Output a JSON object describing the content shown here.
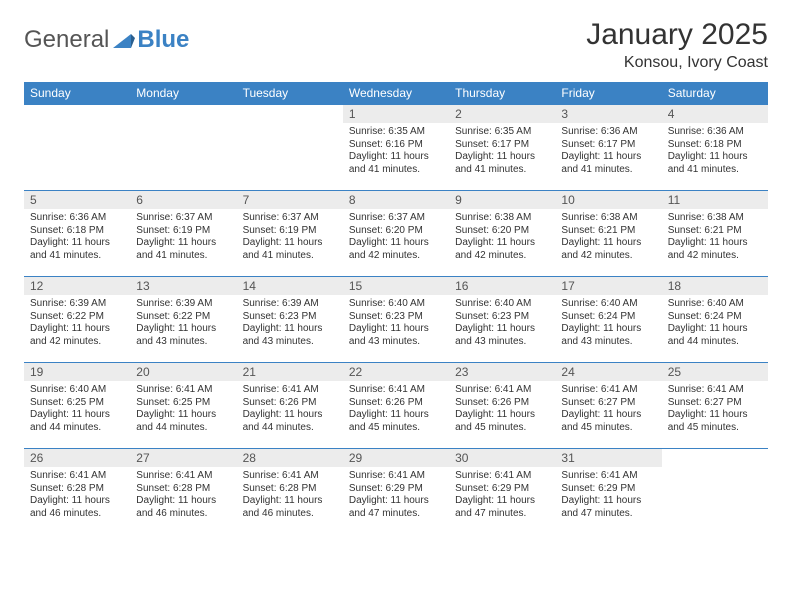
{
  "brand": {
    "part1": "General",
    "part2": "Blue"
  },
  "title": "January 2025",
  "location": "Konsou, Ivory Coast",
  "colors": {
    "header_bg": "#3b82c4",
    "header_text": "#ffffff",
    "daynum_bg": "#ececec",
    "border": "#3b82c4",
    "text": "#333333",
    "background": "#ffffff"
  },
  "typography": {
    "title_fontsize": 30,
    "location_fontsize": 16,
    "header_fontsize": 12,
    "daynum_fontsize": 12,
    "body_fontsize": 10
  },
  "day_headers": [
    "Sunday",
    "Monday",
    "Tuesday",
    "Wednesday",
    "Thursday",
    "Friday",
    "Saturday"
  ],
  "weeks": [
    [
      null,
      null,
      null,
      {
        "n": "1",
        "sunrise": "6:35 AM",
        "sunset": "6:16 PM",
        "daylight": "11 hours and 41 minutes."
      },
      {
        "n": "2",
        "sunrise": "6:35 AM",
        "sunset": "6:17 PM",
        "daylight": "11 hours and 41 minutes."
      },
      {
        "n": "3",
        "sunrise": "6:36 AM",
        "sunset": "6:17 PM",
        "daylight": "11 hours and 41 minutes."
      },
      {
        "n": "4",
        "sunrise": "6:36 AM",
        "sunset": "6:18 PM",
        "daylight": "11 hours and 41 minutes."
      }
    ],
    [
      {
        "n": "5",
        "sunrise": "6:36 AM",
        "sunset": "6:18 PM",
        "daylight": "11 hours and 41 minutes."
      },
      {
        "n": "6",
        "sunrise": "6:37 AM",
        "sunset": "6:19 PM",
        "daylight": "11 hours and 41 minutes."
      },
      {
        "n": "7",
        "sunrise": "6:37 AM",
        "sunset": "6:19 PM",
        "daylight": "11 hours and 41 minutes."
      },
      {
        "n": "8",
        "sunrise": "6:37 AM",
        "sunset": "6:20 PM",
        "daylight": "11 hours and 42 minutes."
      },
      {
        "n": "9",
        "sunrise": "6:38 AM",
        "sunset": "6:20 PM",
        "daylight": "11 hours and 42 minutes."
      },
      {
        "n": "10",
        "sunrise": "6:38 AM",
        "sunset": "6:21 PM",
        "daylight": "11 hours and 42 minutes."
      },
      {
        "n": "11",
        "sunrise": "6:38 AM",
        "sunset": "6:21 PM",
        "daylight": "11 hours and 42 minutes."
      }
    ],
    [
      {
        "n": "12",
        "sunrise": "6:39 AM",
        "sunset": "6:22 PM",
        "daylight": "11 hours and 42 minutes."
      },
      {
        "n": "13",
        "sunrise": "6:39 AM",
        "sunset": "6:22 PM",
        "daylight": "11 hours and 43 minutes."
      },
      {
        "n": "14",
        "sunrise": "6:39 AM",
        "sunset": "6:23 PM",
        "daylight": "11 hours and 43 minutes."
      },
      {
        "n": "15",
        "sunrise": "6:40 AM",
        "sunset": "6:23 PM",
        "daylight": "11 hours and 43 minutes."
      },
      {
        "n": "16",
        "sunrise": "6:40 AM",
        "sunset": "6:23 PM",
        "daylight": "11 hours and 43 minutes."
      },
      {
        "n": "17",
        "sunrise": "6:40 AM",
        "sunset": "6:24 PM",
        "daylight": "11 hours and 43 minutes."
      },
      {
        "n": "18",
        "sunrise": "6:40 AM",
        "sunset": "6:24 PM",
        "daylight": "11 hours and 44 minutes."
      }
    ],
    [
      {
        "n": "19",
        "sunrise": "6:40 AM",
        "sunset": "6:25 PM",
        "daylight": "11 hours and 44 minutes."
      },
      {
        "n": "20",
        "sunrise": "6:41 AM",
        "sunset": "6:25 PM",
        "daylight": "11 hours and 44 minutes."
      },
      {
        "n": "21",
        "sunrise": "6:41 AM",
        "sunset": "6:26 PM",
        "daylight": "11 hours and 44 minutes."
      },
      {
        "n": "22",
        "sunrise": "6:41 AM",
        "sunset": "6:26 PM",
        "daylight": "11 hours and 45 minutes."
      },
      {
        "n": "23",
        "sunrise": "6:41 AM",
        "sunset": "6:26 PM",
        "daylight": "11 hours and 45 minutes."
      },
      {
        "n": "24",
        "sunrise": "6:41 AM",
        "sunset": "6:27 PM",
        "daylight": "11 hours and 45 minutes."
      },
      {
        "n": "25",
        "sunrise": "6:41 AM",
        "sunset": "6:27 PM",
        "daylight": "11 hours and 45 minutes."
      }
    ],
    [
      {
        "n": "26",
        "sunrise": "6:41 AM",
        "sunset": "6:28 PM",
        "daylight": "11 hours and 46 minutes."
      },
      {
        "n": "27",
        "sunrise": "6:41 AM",
        "sunset": "6:28 PM",
        "daylight": "11 hours and 46 minutes."
      },
      {
        "n": "28",
        "sunrise": "6:41 AM",
        "sunset": "6:28 PM",
        "daylight": "11 hours and 46 minutes."
      },
      {
        "n": "29",
        "sunrise": "6:41 AM",
        "sunset": "6:29 PM",
        "daylight": "11 hours and 47 minutes."
      },
      {
        "n": "30",
        "sunrise": "6:41 AM",
        "sunset": "6:29 PM",
        "daylight": "11 hours and 47 minutes."
      },
      {
        "n": "31",
        "sunrise": "6:41 AM",
        "sunset": "6:29 PM",
        "daylight": "11 hours and 47 minutes."
      },
      null
    ]
  ],
  "labels": {
    "sunrise": "Sunrise:",
    "sunset": "Sunset:",
    "daylight": "Daylight:"
  }
}
